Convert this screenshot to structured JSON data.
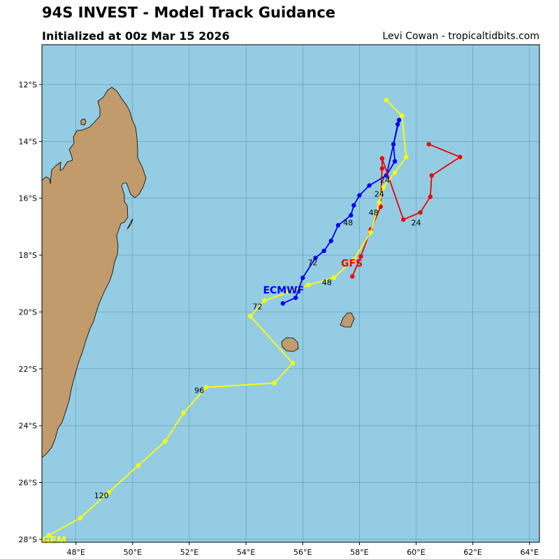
{
  "header": {
    "title": "94S INVEST - Model Track Guidance",
    "subtitle": "Initialized at 00z Mar 15 2026",
    "credit": "Levi Cowan - tropicaltidbits.com"
  },
  "colors": {
    "ocean": "#94cde3",
    "land": "#c29b6c",
    "grid": "#3c6f80"
  },
  "axes": {
    "lon_ticks": [
      "48°E",
      "50°E",
      "52°E",
      "54°E",
      "56°E",
      "58°E",
      "60°E",
      "62°E",
      "64°E"
    ],
    "lat_ticks": [
      "12°S",
      "14°S",
      "16°S",
      "18°S",
      "20°S",
      "22°S",
      "24°S",
      "26°S",
      "28°S"
    ],
    "lon_range": [
      46.8,
      64.35
    ],
    "lat_range": [
      -10.6,
      -28.1
    ]
  },
  "chart_data": {
    "type": "map-tracks",
    "series": [
      {
        "name": "ECMWF",
        "color": "#0000ee",
        "points": [
          [
            58.95,
            -15.2
          ],
          [
            59.25,
            -14.7
          ],
          [
            59.2,
            -14.1
          ],
          [
            59.35,
            -13.4
          ],
          [
            59.4,
            -13.25
          ],
          [
            58.95,
            -15.2
          ],
          [
            58.35,
            -15.55
          ],
          [
            58.0,
            -15.9
          ],
          [
            57.8,
            -16.25
          ],
          [
            57.7,
            -16.6
          ],
          [
            57.25,
            -16.95
          ],
          [
            57.0,
            -17.5
          ],
          [
            56.75,
            -17.85
          ],
          [
            56.45,
            -18.1
          ],
          [
            56.0,
            -18.8
          ],
          [
            55.75,
            -19.5
          ],
          [
            55.3,
            -19.7
          ]
        ],
        "labels": [
          {
            "text": "24",
            "at": [
              58.9,
              -15.45
            ]
          },
          {
            "text": "48",
            "at": [
              57.6,
              -16.95
            ]
          },
          {
            "text": "72",
            "at": [
              56.35,
              -18.35
            ]
          }
        ],
        "name_at": [
          54.6,
          -19.35
        ]
      },
      {
        "name": "GFS",
        "color": "#ee0000",
        "points": [
          [
            57.75,
            -18.75
          ],
          [
            58.05,
            -18.05
          ],
          [
            58.4,
            -17.1
          ],
          [
            58.75,
            -16.3
          ],
          [
            58.8,
            -14.95
          ],
          [
            58.8,
            -14.6
          ],
          [
            59.55,
            -16.75
          ],
          [
            60.15,
            -16.5
          ],
          [
            60.5,
            -15.95
          ],
          [
            60.55,
            -15.2
          ],
          [
            61.55,
            -14.55
          ],
          [
            60.45,
            -14.1
          ]
        ],
        "labels": [
          {
            "text": "24",
            "at": [
              60.0,
              -16.95
            ]
          }
        ],
        "name_at": [
          57.35,
          -18.4
        ]
      },
      {
        "name": "GEM",
        "color": "#ffff00",
        "points": [
          [
            58.95,
            -12.55
          ],
          [
            59.5,
            -13.1
          ],
          [
            59.65,
            -14.55
          ],
          [
            59.25,
            -15.1
          ],
          [
            58.85,
            -15.6
          ],
          [
            58.7,
            -16.15
          ],
          [
            58.4,
            -17.2
          ],
          [
            57.8,
            -18.15
          ],
          [
            57.1,
            -18.8
          ],
          [
            56.2,
            -19.05
          ],
          [
            55.5,
            -19.3
          ],
          [
            54.65,
            -19.6
          ],
          [
            54.15,
            -20.15
          ],
          [
            55.65,
            -21.8
          ],
          [
            55.0,
            -22.5
          ],
          [
            52.6,
            -22.65
          ],
          [
            51.8,
            -23.55
          ],
          [
            51.15,
            -24.55
          ],
          [
            50.2,
            -25.4
          ],
          [
            49.15,
            -26.35
          ],
          [
            48.15,
            -27.25
          ],
          [
            47.05,
            -27.85
          ]
        ],
        "labels": [
          {
            "text": "24",
            "at": [
              58.7,
              -15.95
            ]
          },
          {
            "text": "48",
            "at": [
              58.5,
              -16.6
            ]
          },
          {
            "text": "48",
            "at": [
              56.85,
              -19.05
            ]
          },
          {
            "text": "72",
            "at": [
              54.4,
              -19.9
            ]
          },
          {
            "text": "96",
            "at": [
              52.35,
              -22.85
            ]
          },
          {
            "text": "120",
            "at": [
              48.9,
              -26.55
            ]
          }
        ],
        "name_at": [
          46.8,
          -28.15
        ]
      }
    ]
  }
}
